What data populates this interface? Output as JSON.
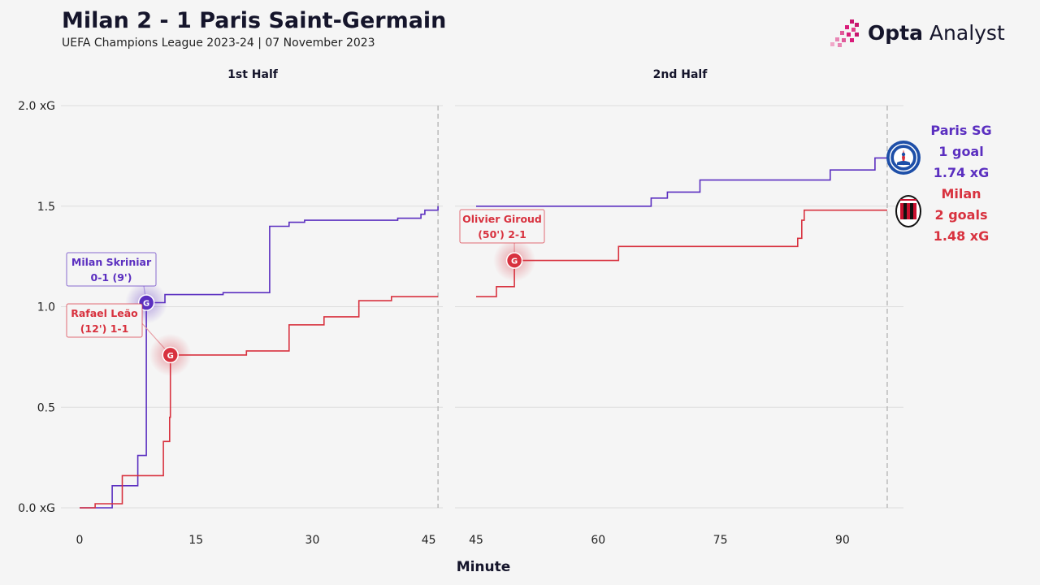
{
  "title": "Milan 2 - 1 Paris Saint-Germain",
  "subtitle": "UEFA Champions League 2023-24 | 07 November 2023",
  "brand": {
    "bold": "Opta",
    "light": "Analyst",
    "icon": "opta-logo"
  },
  "colors": {
    "psg": "#5b2fc0",
    "milan": "#d8323f",
    "grid": "#dddddd",
    "text": "#1a1a2e"
  },
  "teams": {
    "psg": {
      "name": "Paris SG",
      "goals": "1 goal",
      "xg": "1.74 xG",
      "logo": "psg-crest-icon"
    },
    "milan": {
      "name": "Milan",
      "goals": "2 goals",
      "xg": "1.48 xG",
      "logo": "milan-crest-icon"
    }
  },
  "chart_data": {
    "type": "line",
    "subtype": "step",
    "xlabel": "Minute",
    "ylabel": "",
    "ylim": [
      0,
      2.0
    ],
    "yticks": [
      {
        "value": 0.0,
        "label": "0.0 xG"
      },
      {
        "value": 0.5,
        "label": "0.5"
      },
      {
        "value": 1.0,
        "label": "1.0"
      },
      {
        "value": 1.5,
        "label": "1.5"
      },
      {
        "value": 2.0,
        "label": "2.0 xG"
      }
    ],
    "grid": true,
    "panels": [
      {
        "title": "1st Half",
        "xlim": [
          0,
          46.5
        ],
        "xticks": [
          0,
          15,
          30,
          45
        ],
        "end_minute": 46.2
      },
      {
        "title": "2nd Half",
        "xlim": [
          45,
          97.5
        ],
        "xticks": [
          45,
          60,
          75,
          90
        ],
        "end_minute": 95.5
      }
    ],
    "series": [
      {
        "key": "psg",
        "name": "Paris SG",
        "first_half": [
          [
            0,
            0
          ],
          [
            4.2,
            0.11
          ],
          [
            7.5,
            0.26
          ],
          [
            8.6,
            1.02
          ],
          [
            11,
            1.06
          ],
          [
            18.5,
            1.07
          ],
          [
            24.5,
            1.4
          ],
          [
            27,
            1.42
          ],
          [
            29,
            1.43
          ],
          [
            41,
            1.44
          ],
          [
            44,
            1.46
          ],
          [
            44.5,
            1.48
          ],
          [
            46.2,
            1.5
          ]
        ],
        "second_half": [
          [
            45,
            1.5
          ],
          [
            66.5,
            1.54
          ],
          [
            68.5,
            1.57
          ],
          [
            72.5,
            1.63
          ],
          [
            88.5,
            1.68
          ],
          [
            94,
            1.74
          ],
          [
            95.5,
            1.74
          ]
        ]
      },
      {
        "key": "milan",
        "name": "Milan",
        "first_half": [
          [
            0,
            0
          ],
          [
            2,
            0.02
          ],
          [
            5.5,
            0.16
          ],
          [
            10.8,
            0.33
          ],
          [
            11.6,
            0.45
          ],
          [
            11.7,
            0.76
          ],
          [
            21.5,
            0.78
          ],
          [
            24.5,
            0.78
          ],
          [
            27,
            0.91
          ],
          [
            31.5,
            0.95
          ],
          [
            36,
            1.03
          ],
          [
            40.2,
            1.05
          ],
          [
            46.2,
            1.05
          ]
        ],
        "second_half": [
          [
            45,
            1.05
          ],
          [
            47.5,
            1.1
          ],
          [
            49.7,
            1.23
          ],
          [
            62.5,
            1.3
          ],
          [
            84.5,
            1.34
          ],
          [
            85,
            1.43
          ],
          [
            85.3,
            1.48
          ],
          [
            95.5,
            1.48
          ]
        ]
      }
    ],
    "goals": [
      {
        "series": "psg",
        "panel": 0,
        "minute": 8.6,
        "xg": 1.02,
        "marker": "G",
        "label_lines": [
          "Milan Skriniar",
          "0-1 (9')"
        ]
      },
      {
        "series": "milan",
        "panel": 0,
        "minute": 11.7,
        "xg": 0.76,
        "marker": "G",
        "label_lines": [
          "Rafael Leão",
          "(12') 1-1"
        ]
      },
      {
        "series": "milan",
        "panel": 1,
        "minute": 49.7,
        "xg": 1.23,
        "marker": "G",
        "label_lines": [
          "Olivier Giroud",
          "(50') 2-1"
        ]
      }
    ]
  }
}
